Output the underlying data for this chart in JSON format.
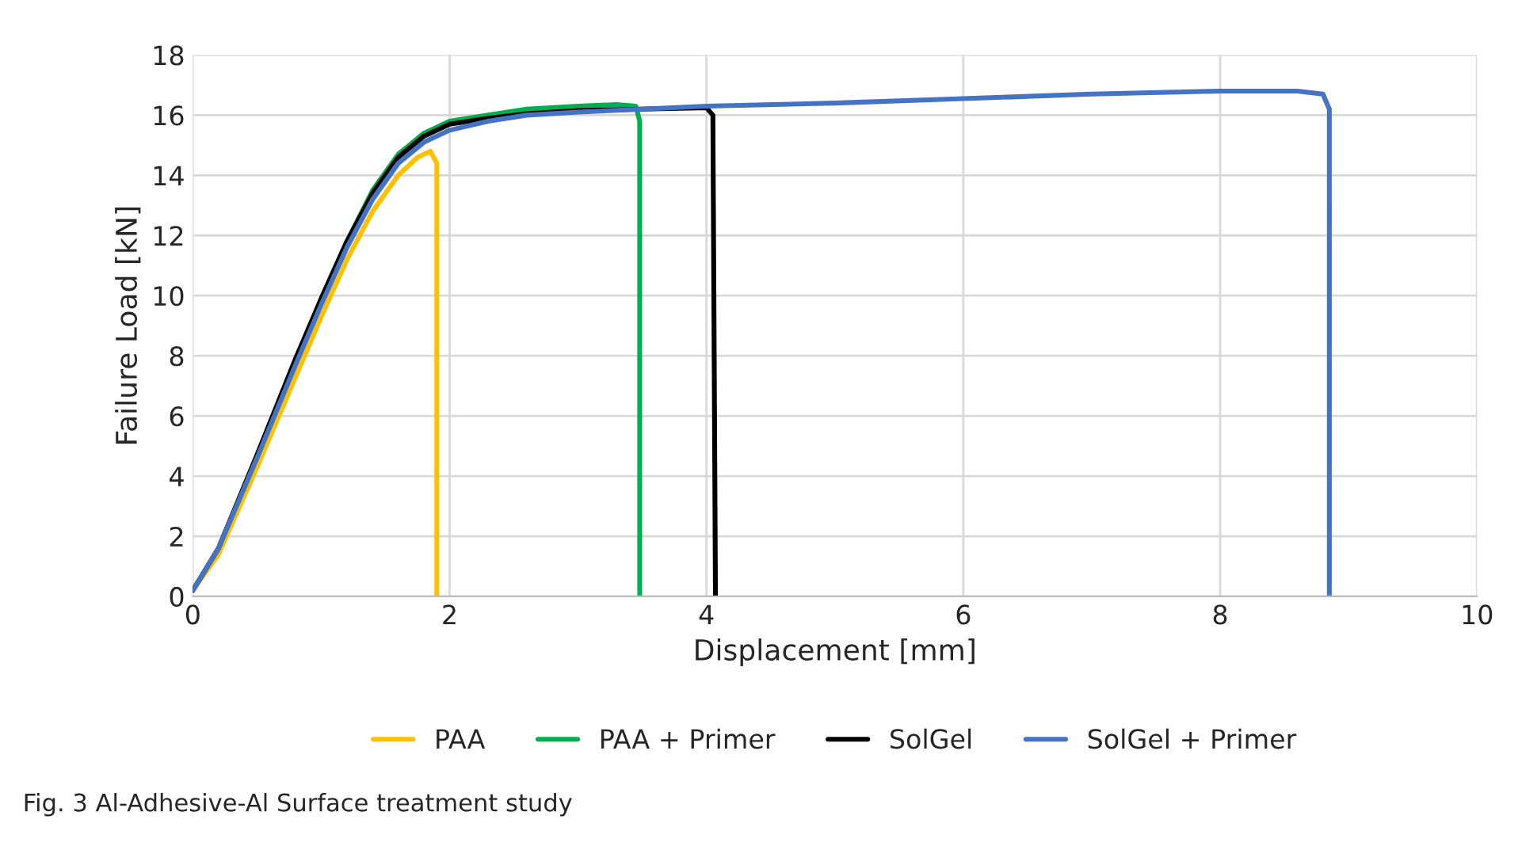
{
  "chart_data": {
    "type": "line",
    "xlabel": "Displacement [mm]",
    "ylabel": "Failure Load [kN]",
    "xlim": [
      0,
      10
    ],
    "xticks": [
      0,
      2,
      4,
      6,
      8,
      10
    ],
    "ylim": [
      0,
      18
    ],
    "yticks": [
      0,
      2,
      4,
      6,
      8,
      10,
      12,
      14,
      16,
      18
    ],
    "grid": true,
    "legend": "bottom",
    "marker": "none",
    "line_style": "solid",
    "annotations": [
      "Fig. 3 Al-Adhesive-Al Surface treatment study"
    ],
    "series": [
      {
        "name": "PAA",
        "color": "#ffc000",
        "x": [
          0,
          0.2,
          0.5,
          0.8,
          1.0,
          1.2,
          1.4,
          1.6,
          1.75,
          1.85,
          1.9,
          1.9
        ],
        "values": [
          0.2,
          1.4,
          4.3,
          7.3,
          9.3,
          11.2,
          12.8,
          14.0,
          14.6,
          14.8,
          14.4,
          0
        ]
      },
      {
        "name": "PAA + Primer",
        "color": "#00b050",
        "x": [
          1.0,
          1.2,
          1.4,
          1.6,
          1.8,
          2.0,
          2.3,
          2.6,
          3.0,
          3.3,
          3.45,
          3.48,
          3.48
        ],
        "values": [
          9.9,
          11.8,
          13.5,
          14.7,
          15.4,
          15.8,
          16.0,
          16.2,
          16.3,
          16.35,
          16.3,
          15.8,
          0
        ]
      },
      {
        "name": "SolGel",
        "color": "#000000",
        "x": [
          0,
          0.2,
          0.5,
          0.8,
          1.0,
          1.2,
          1.4,
          1.6,
          1.8,
          2.0,
          2.3,
          2.6,
          3.0,
          3.5,
          4.0,
          4.05,
          4.07
        ],
        "values": [
          0.2,
          1.6,
          4.7,
          7.9,
          9.9,
          11.8,
          13.4,
          14.6,
          15.3,
          15.7,
          15.9,
          16.05,
          16.15,
          16.2,
          16.25,
          16.0,
          0
        ]
      },
      {
        "name": "SolGel + Primer",
        "color": "#4472c4",
        "x": [
          0,
          0.2,
          0.5,
          0.8,
          1.0,
          1.2,
          1.4,
          1.6,
          1.8,
          2.0,
          2.3,
          2.6,
          3.0,
          3.5,
          4.0,
          5,
          6,
          7,
          8,
          8.6,
          8.8,
          8.85,
          8.85
        ],
        "values": [
          0.2,
          1.6,
          4.6,
          7.7,
          9.7,
          11.6,
          13.2,
          14.4,
          15.1,
          15.5,
          15.8,
          16.0,
          16.1,
          16.2,
          16.3,
          16.4,
          16.55,
          16.7,
          16.8,
          16.8,
          16.7,
          16.2,
          0
        ]
      }
    ]
  }
}
